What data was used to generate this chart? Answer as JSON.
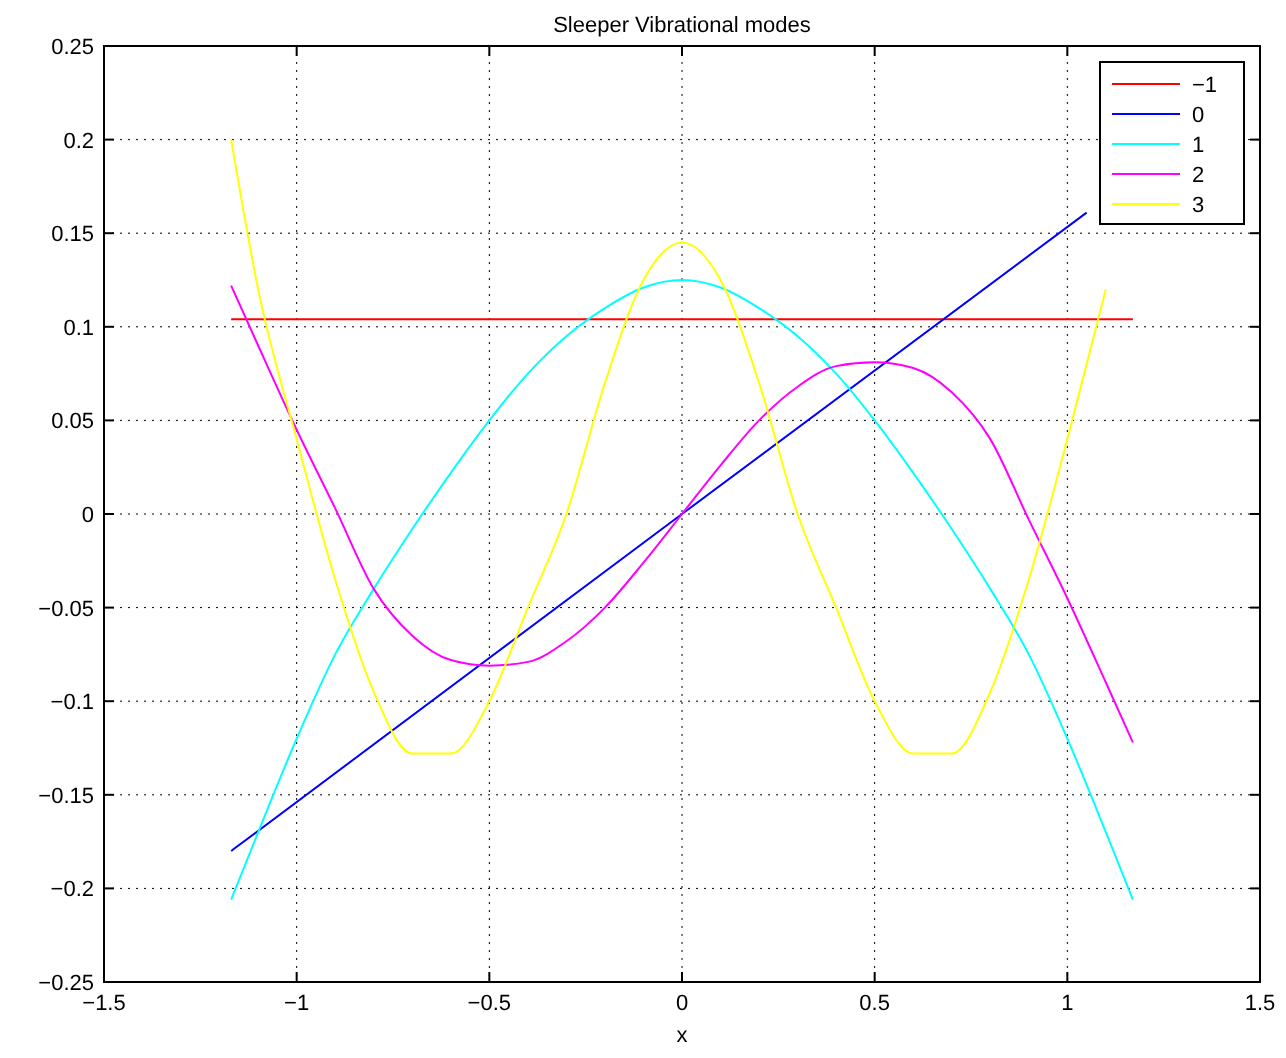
{
  "chart_data": {
    "type": "line",
    "title": "Sleeper Vibrational modes",
    "xlabel": "x",
    "xlim": [
      -1.5,
      1.5
    ],
    "xticks": [
      {
        "value": -1.5,
        "label": "−1.5"
      },
      {
        "value": -1,
        "label": "−1"
      },
      {
        "value": -0.5,
        "label": "−0.5"
      },
      0,
      0.5,
      1,
      1.5
    ],
    "ylim": [
      -0.25,
      0.25
    ],
    "yticks": [
      {
        "value": -0.25,
        "label": "−0.25"
      },
      {
        "value": -0.2,
        "label": "−0.2"
      },
      {
        "value": -0.15,
        "label": "−0.15"
      },
      {
        "value": -0.1,
        "label": "−0.1"
      },
      {
        "value": -0.05,
        "label": "−0.05"
      },
      0,
      0.05,
      0.1,
      0.15,
      0.2,
      0.25
    ],
    "grid": true,
    "legend": "top right",
    "x": [
      -1.17,
      -1.1,
      -1.0,
      -0.9,
      -0.8,
      -0.7,
      -0.6,
      -0.5,
      -0.4,
      -0.3,
      -0.2,
      -0.1,
      0,
      0.1,
      0.2,
      0.3,
      0.4,
      0.5,
      0.6,
      0.7,
      0.8,
      0.9,
      1.0,
      1.1,
      1.17
    ],
    "series": [
      {
        "name": "−1",
        "color": "#ff0000",
        "x": [
          -1.17,
          1.17
        ],
        "values": [
          0.104,
          0.104
        ]
      },
      {
        "name": "0",
        "color": "#0000ff",
        "x": [
          -1.17,
          0,
          1.05
        ],
        "values": [
          -0.18,
          0,
          0.161
        ]
      },
      {
        "name": "1",
        "color": "#00ffff",
        "values": [
          -0.206,
          -0.17,
          -0.12,
          -0.075,
          -0.04,
          -0.008,
          0.022,
          0.05,
          0.075,
          0.095,
          0.11,
          0.121,
          0.125,
          0.121,
          0.11,
          0.095,
          0.075,
          0.05,
          0.022,
          -0.008,
          -0.04,
          -0.075,
          -0.12,
          -0.17,
          -0.206
        ]
      },
      {
        "name": "2",
        "color": "#ff00ff",
        "values": [
          0.122,
          0.09,
          0.045,
          0.003,
          -0.04,
          -0.065,
          -0.078,
          -0.081,
          -0.079,
          -0.068,
          -0.05,
          -0.026,
          0,
          0.026,
          0.05,
          0.068,
          0.079,
          0.081,
          0.078,
          0.065,
          0.04,
          -0.003,
          -0.045,
          -0.09,
          -0.122
        ]
      },
      {
        "name": "3",
        "color": "#ffff00",
        "values": [
          0.2,
          0.12,
          0.04,
          -0.035,
          -0.095,
          -0.128,
          -0.128,
          -0.1,
          -0.05,
          0.0,
          0.07,
          0.125,
          0.145,
          0.125,
          0.07,
          0.0,
          -0.05,
          -0.1,
          -0.128,
          -0.128,
          -0.095,
          -0.035,
          0.04,
          0.12,
          null
        ]
      }
    ]
  }
}
